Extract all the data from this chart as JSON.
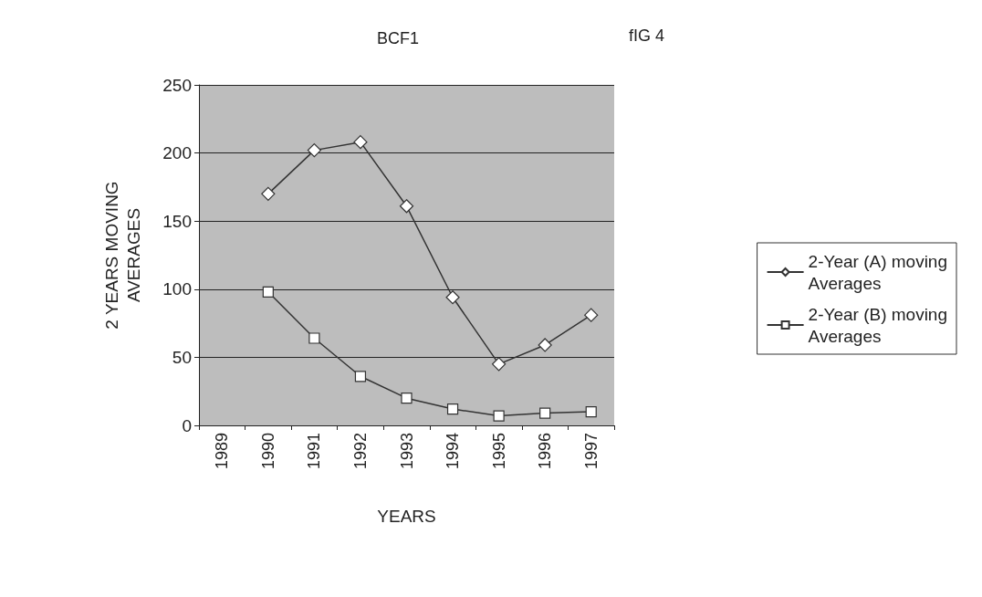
{
  "chart_data": {
    "type": "line",
    "title": "BCF1",
    "annotations": [
      "fIG 4"
    ],
    "xlabel": "YEARS",
    "ylabel": "2 YEARS MOVING\nAVERAGES",
    "categories": [
      "1989",
      "1990",
      "1991",
      "1992",
      "1993",
      "1994",
      "1995",
      "1996",
      "1997"
    ],
    "series": [
      {
        "name": "2-Year (A) moving\nAverages",
        "color": "#333333",
        "marker": "diamond",
        "values": [
          null,
          170,
          202,
          208,
          161,
          94,
          45,
          59,
          81
        ]
      },
      {
        "name": "2-Year (B) moving\nAverages",
        "color": "#333333",
        "marker": "square",
        "values": [
          null,
          98,
          64,
          36,
          20,
          12,
          7,
          9,
          10
        ]
      }
    ],
    "ylim": [
      0,
      250
    ],
    "yticks": [
      0,
      50,
      100,
      150,
      200,
      250
    ],
    "grid": "y",
    "legend": "right",
    "line_style": "solid"
  }
}
